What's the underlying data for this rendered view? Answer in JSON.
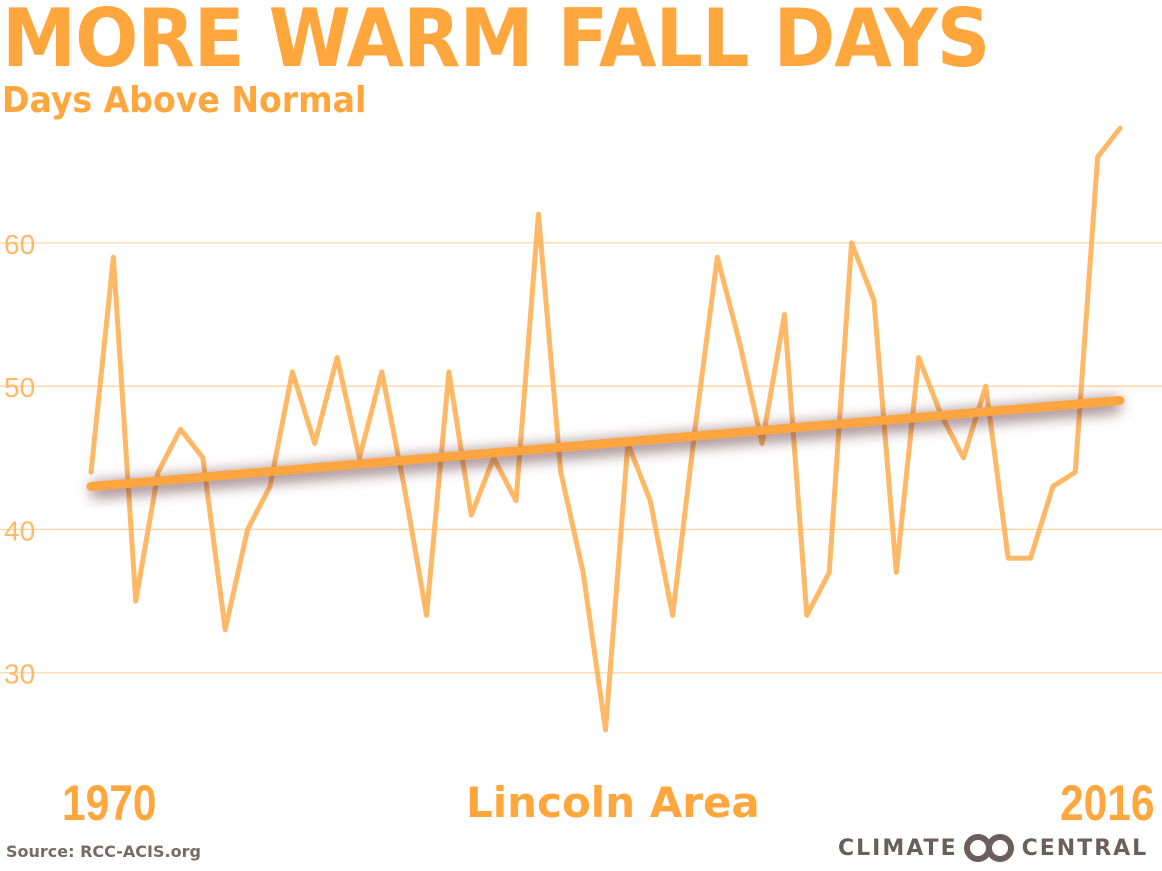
{
  "chart_data": {
    "type": "line",
    "title": "MORE WARM FALL DAYS",
    "subtitle": "Days Above Normal",
    "location_label": "Lincoln Area",
    "x_start_label": "1970",
    "x_end_label": "2016",
    "x": [
      1970,
      1971,
      1972,
      1973,
      1974,
      1975,
      1976,
      1977,
      1978,
      1979,
      1980,
      1981,
      1982,
      1983,
      1984,
      1985,
      1986,
      1987,
      1988,
      1989,
      1990,
      1991,
      1992,
      1993,
      1994,
      1995,
      1996,
      1997,
      1998,
      1999,
      2000,
      2001,
      2002,
      2003,
      2004,
      2005,
      2006,
      2007,
      2008,
      2009,
      2010,
      2011,
      2012,
      2013,
      2014,
      2015,
      2016
    ],
    "series": [
      {
        "values": [
          44,
          59,
          35,
          44,
          47,
          45,
          33,
          40,
          43,
          51,
          46,
          52,
          45,
          51,
          43,
          34,
          51,
          41,
          45,
          42,
          62,
          44,
          37,
          26,
          46,
          42,
          34,
          47,
          59,
          53,
          46,
          55,
          34,
          37,
          60,
          56,
          37,
          52,
          48,
          45,
          50,
          38,
          38,
          43,
          44,
          66,
          68
        ]
      }
    ],
    "trend": {
      "start": 43,
      "end": 49
    },
    "yticks": [
      30,
      40,
      50,
      60
    ],
    "ylim": [
      20,
      75
    ],
    "grid": true,
    "colors": {
      "line": "#FFB866",
      "trend": "#FFA540",
      "text": "#FFA63D",
      "grid": "#FFD6A3"
    }
  },
  "source": "Source: RCC-ACIS.org",
  "logo": {
    "left": "CLIMATE",
    "right": "CENTRAL"
  }
}
